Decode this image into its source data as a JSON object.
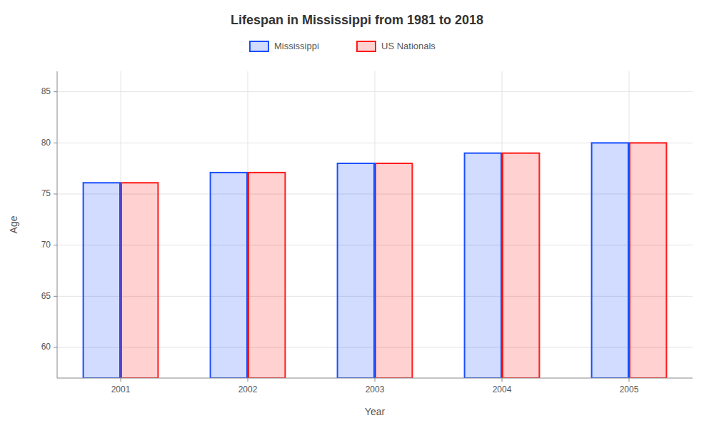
{
  "chart_data": {
    "type": "bar",
    "title": "Lifespan in Mississippi from 1981 to 2018",
    "xlabel": "Year",
    "ylabel": "Age",
    "categories": [
      "2001",
      "2002",
      "2003",
      "2004",
      "2005"
    ],
    "series": [
      {
        "name": "Mississippi",
        "color": "#1a4fff",
        "values": [
          76.1,
          77.1,
          78.0,
          79.0,
          80.0
        ]
      },
      {
        "name": "US Nationals",
        "color": "#ff1a1a",
        "values": [
          76.1,
          77.1,
          78.0,
          79.0,
          80.0
        ]
      }
    ],
    "ylim": [
      57,
      87
    ],
    "yticks": [
      60,
      65,
      70,
      75,
      80,
      85
    ],
    "grid": true,
    "legend": "top"
  }
}
